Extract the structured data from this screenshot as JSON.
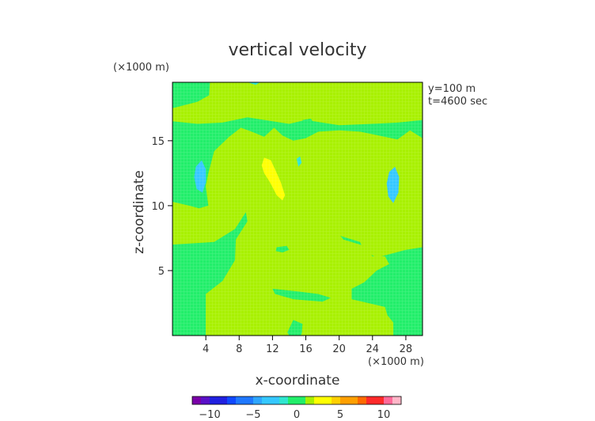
{
  "chart_data": {
    "type": "heatmap",
    "title": "vertical velocity",
    "xlabel": "x-coordinate",
    "ylabel": "z-coordinate",
    "x_unit": "(×1000 m)",
    "y_unit": "(×1000 m)",
    "info_lines": [
      "y=100 m",
      "t=4600 sec"
    ],
    "xlim": [
      0,
      30
    ],
    "ylim": [
      0,
      19.5
    ],
    "x_ticks": [
      4,
      8,
      12,
      16,
      20,
      24,
      28
    ],
    "y_ticks": [
      5,
      10,
      15
    ],
    "colorbar": {
      "range": [
        -12,
        12
      ],
      "ticks": [
        -10,
        -5,
        0,
        5,
        10
      ],
      "levels": [
        {
          "value": -12,
          "color": "#7a00a8"
        },
        {
          "value": -10.5,
          "color": "#5a10c8"
        },
        {
          "value": -9,
          "color": "#2020e0"
        },
        {
          "value": -7.5,
          "color": "#1048ff"
        },
        {
          "value": -6,
          "color": "#1f78ff"
        },
        {
          "value": -4.5,
          "color": "#2ea6ff"
        },
        {
          "value": -3,
          "color": "#35c8ff"
        },
        {
          "value": -1.5,
          "color": "#2fe6d0"
        },
        {
          "value": 0,
          "color": "#22ee6a"
        },
        {
          "value": 1.5,
          "color": "#a8f000"
        },
        {
          "value": 3,
          "color": "#ffff00"
        },
        {
          "value": 4.5,
          "color": "#ffd000"
        },
        {
          "value": 6,
          "color": "#ffa000"
        },
        {
          "value": 7.5,
          "color": "#ff6a00"
        },
        {
          "value": 9,
          "color": "#ff2a2a"
        },
        {
          "value": 10.5,
          "color": "#ff6a9a"
        },
        {
          "value": 12,
          "color": "#ffb6c8"
        }
      ]
    },
    "background_value": 0,
    "regions": [
      {
        "label": "positive-upper-band",
        "value": 1.5,
        "points": [
          [
            4.5,
            19.5
          ],
          [
            4.4,
            18.5
          ],
          [
            3,
            18
          ],
          [
            0,
            17.5
          ],
          [
            0,
            16.5
          ],
          [
            3,
            16.3
          ],
          [
            6,
            16.4
          ],
          [
            9,
            16.8
          ],
          [
            14,
            16.3
          ],
          [
            16,
            16.6
          ],
          [
            20,
            16.2
          ],
          [
            24,
            16.3
          ],
          [
            27,
            16.4
          ],
          [
            30,
            16.6
          ],
          [
            30,
            15.2
          ],
          [
            28.5,
            15.8
          ],
          [
            27,
            15.1
          ],
          [
            24,
            15.5
          ],
          [
            22.5,
            15.7
          ],
          [
            20,
            15.8
          ],
          [
            17.5,
            15.7
          ],
          [
            16,
            15.2
          ],
          [
            14.5,
            15.0
          ],
          [
            13.2,
            15.4
          ],
          [
            12.2,
            16.0
          ],
          [
            11,
            15.3
          ],
          [
            9.5,
            15.7
          ],
          [
            8.2,
            16.0
          ],
          [
            6.8,
            15.3
          ],
          [
            5,
            14.2
          ],
          [
            4.3,
            12.5
          ],
          [
            4.0,
            11.5
          ],
          [
            4.3,
            10.0
          ],
          [
            3.2,
            9.8
          ],
          [
            2,
            10
          ],
          [
            0,
            10.3
          ],
          [
            0,
            7
          ],
          [
            5,
            7.2
          ],
          [
            7.5,
            8.2
          ],
          [
            8.8,
            9.5
          ],
          [
            10.2,
            9.5
          ],
          [
            11.2,
            10.8
          ],
          [
            12,
            9.3
          ],
          [
            14,
            8.8
          ],
          [
            15,
            9.5
          ],
          [
            16,
            11.8
          ],
          [
            17,
            13.0
          ],
          [
            18.2,
            11.8
          ],
          [
            18.6,
            10
          ],
          [
            18.6,
            8.3
          ],
          [
            20,
            7.7
          ],
          [
            22.5,
            7.2
          ],
          [
            23,
            6.5
          ],
          [
            24.5,
            6.0
          ],
          [
            28,
            6.6
          ],
          [
            30,
            6.8
          ],
          [
            30,
            0
          ],
          [
            26.5,
            0
          ],
          [
            26.5,
            1.0
          ],
          [
            25.5,
            1.8
          ],
          [
            23,
            1.7
          ],
          [
            20.5,
            1.0
          ],
          [
            17.6,
            1.0
          ],
          [
            16,
            0.9
          ],
          [
            15.4,
            0
          ],
          [
            14,
            0
          ],
          [
            13.2,
            0.9
          ],
          [
            10,
            1.2
          ],
          [
            5,
            1.4
          ],
          [
            4,
            2.0
          ],
          [
            4,
            0
          ],
          [
            30,
            0
          ],
          [
            30,
            19.5
          ]
        ]
      },
      {
        "label": "positive-mid-left",
        "value": 1.5,
        "points": [
          [
            10,
            19.5
          ],
          [
            10,
            18.6
          ],
          [
            12,
            18.3
          ],
          [
            13,
            17.5
          ],
          [
            15.5,
            17.5
          ],
          [
            16.5,
            18.2
          ],
          [
            19,
            18.2
          ],
          [
            20,
            19.5
          ]
        ]
      },
      {
        "label": "positive-core",
        "value": 1.5,
        "points": [
          [
            8,
            14.6
          ],
          [
            10.5,
            15.2
          ],
          [
            12,
            14.6
          ],
          [
            13,
            13.5
          ],
          [
            14,
            13.2
          ],
          [
            15.5,
            14.5
          ],
          [
            16.5,
            15.1
          ],
          [
            18,
            14.2
          ],
          [
            19,
            12.8
          ],
          [
            19.8,
            11.0
          ],
          [
            20.0,
            9.2
          ],
          [
            19.5,
            8.2
          ],
          [
            20.5,
            7.4
          ],
          [
            23,
            6.9
          ],
          [
            24,
            6.1
          ],
          [
            25.5,
            6.1
          ],
          [
            26,
            5.5
          ],
          [
            24.5,
            5.0
          ],
          [
            23,
            4.1
          ],
          [
            21.5,
            3.6
          ],
          [
            21.5,
            2.8
          ],
          [
            23.5,
            2.5
          ],
          [
            25.5,
            2.2
          ],
          [
            26.5,
            0
          ],
          [
            15.5,
            0
          ],
          [
            15.6,
            0.9
          ],
          [
            14.5,
            1.2
          ],
          [
            13.6,
            0
          ],
          [
            4,
            0
          ],
          [
            4,
            3.2
          ],
          [
            6,
            4.2
          ],
          [
            7.5,
            5.8
          ],
          [
            7.6,
            7.4
          ],
          [
            9,
            8.8
          ],
          [
            8.6,
            10.2
          ],
          [
            7.5,
            11.2
          ],
          [
            7.5,
            13.0
          ]
        ]
      },
      {
        "label": "yellow-updraft",
        "value": 3,
        "points": [
          [
            11.0,
            13.7
          ],
          [
            11.8,
            13.5
          ],
          [
            12.3,
            12.8
          ],
          [
            13.0,
            11.8
          ],
          [
            13.5,
            10.8
          ],
          [
            13.2,
            10.4
          ],
          [
            12.5,
            10.8
          ],
          [
            11.7,
            11.8
          ],
          [
            11.0,
            12.5
          ],
          [
            10.7,
            13.1
          ]
        ]
      },
      {
        "label": "downdraft-left",
        "value": -3,
        "points": [
          [
            2.8,
            13.0
          ],
          [
            3.5,
            13.5
          ],
          [
            4.0,
            12.8
          ],
          [
            4.0,
            11.8
          ],
          [
            3.6,
            11.0
          ],
          [
            2.9,
            11.3
          ],
          [
            2.6,
            12.2
          ]
        ]
      },
      {
        "label": "downdraft-right",
        "value": -3,
        "points": [
          [
            26.0,
            12.6
          ],
          [
            26.7,
            13.0
          ],
          [
            27.2,
            12.2
          ],
          [
            27.1,
            11.0
          ],
          [
            26.5,
            10.2
          ],
          [
            25.9,
            10.7
          ],
          [
            25.7,
            11.7
          ]
        ]
      },
      {
        "label": "downdraft-top",
        "value": -1.5,
        "points": [
          [
            9.0,
            19.5
          ],
          [
            10.5,
            19.5
          ],
          [
            10.0,
            19.3
          ]
        ]
      },
      {
        "label": "downdraft-small",
        "value": -1.5,
        "points": [
          [
            14.9,
            13.6
          ],
          [
            15.3,
            13.8
          ],
          [
            15.5,
            13.3
          ],
          [
            15.1,
            13.0
          ]
        ]
      },
      {
        "label": "neutral-hole-1",
        "value": 0,
        "points": [
          [
            12.5,
            6.8
          ],
          [
            13.7,
            6.9
          ],
          [
            14.0,
            6.6
          ],
          [
            13.2,
            6.4
          ],
          [
            12.4,
            6.5
          ]
        ]
      },
      {
        "label": "neutral-hole-2",
        "value": 0,
        "points": [
          [
            12,
            3.6
          ],
          [
            15,
            3.4
          ],
          [
            17.5,
            3.2
          ],
          [
            19,
            2.9
          ],
          [
            18,
            2.6
          ],
          [
            14.5,
            2.8
          ],
          [
            12.3,
            3.2
          ]
        ]
      },
      {
        "label": "neutral-hole-3",
        "value": 0,
        "points": [
          [
            15.6,
            16.6
          ],
          [
            16.6,
            16.7
          ],
          [
            17,
            16.3
          ],
          [
            15.8,
            16.2
          ]
        ]
      }
    ]
  }
}
